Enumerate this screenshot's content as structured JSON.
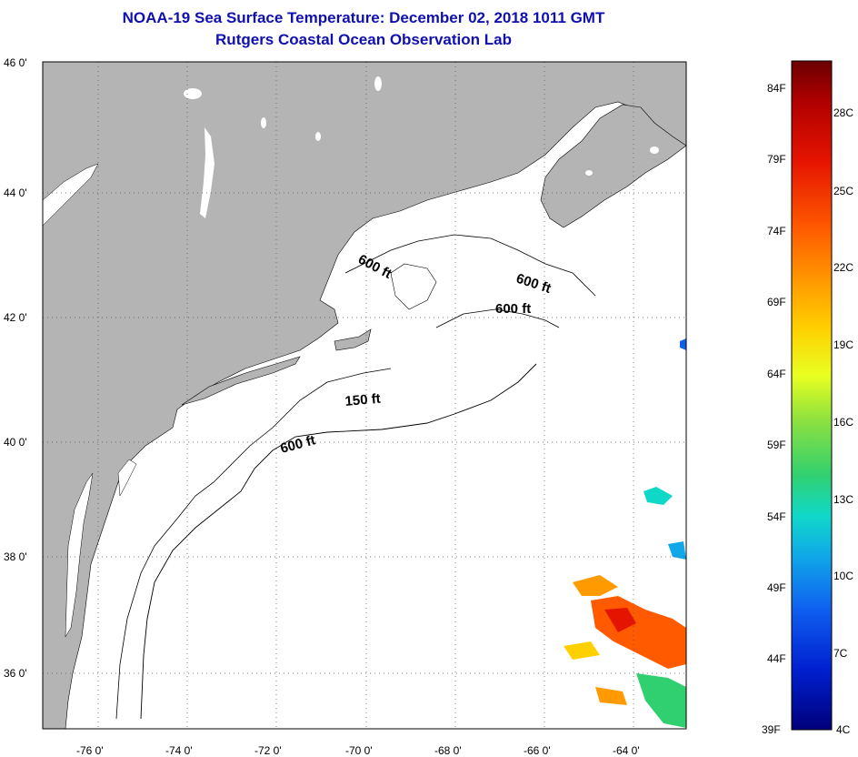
{
  "title": {
    "line1": "NOAA-19 Sea Surface Temperature:  December 02, 2018 1011 GMT",
    "line2": "Rutgers Coastal Ocean Observation Lab"
  },
  "map": {
    "lat_labels": [
      "46 0'",
      "44 0'",
      "42 0'",
      "40 0'",
      "38 0'",
      "36 0'"
    ],
    "lon_labels": [
      "-76 0'",
      "-74 0'",
      "-72 0'",
      "-70 0'",
      "-68 0'",
      "-66 0'",
      "-64 0'"
    ],
    "land_color": "#b4b4b4",
    "ocean_color": "#ffffff",
    "grid": "dotted",
    "contour_labels": [
      "600 ft",
      "600 ft",
      "600 ft",
      "150 ft",
      "600 ft"
    ]
  },
  "colorbar": {
    "f_labels": [
      "84F",
      "79F",
      "74F",
      "69F",
      "64F",
      "59F",
      "54F",
      "49F",
      "44F",
      "39F"
    ],
    "c_labels": [
      "28C",
      "25C",
      "22C",
      "19C",
      "16C",
      "13C",
      "10C",
      "7C",
      "4C"
    ],
    "colors": [
      "#6b0000",
      "#b00000",
      "#e51400",
      "#ff5a00",
      "#ff9a00",
      "#ffd000",
      "#e8ff20",
      "#8ae040",
      "#30d070",
      "#10d8c8",
      "#10a8e8",
      "#1060f0",
      "#0020d0",
      "#00007a"
    ]
  }
}
